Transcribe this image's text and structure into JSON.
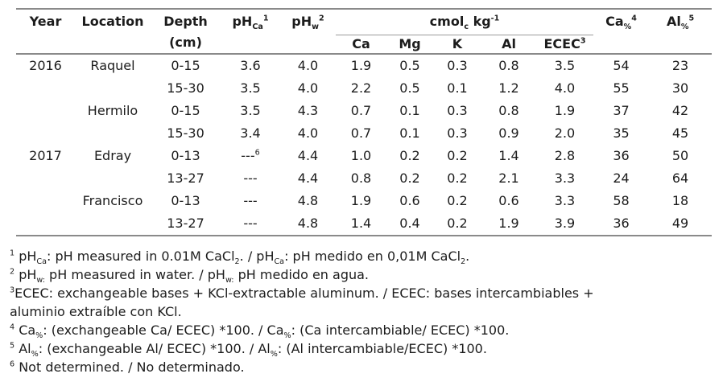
{
  "colors": {
    "rule": "#8a8a8a",
    "thin_rule": "#9a9a9a",
    "text": "#1c1c1c",
    "background": "#ffffff"
  },
  "table": {
    "header": {
      "year": "Year",
      "location": "Location",
      "depth_line1": "Depth",
      "depth_line2": "(cm)",
      "ph_ca": [
        {
          "t": "pH"
        },
        {
          "sub": "Ca"
        },
        {
          "sup": "1"
        }
      ],
      "ph_w": [
        {
          "t": "pH"
        },
        {
          "sub": "w"
        },
        {
          "sup": "2"
        }
      ],
      "cmol_group": [
        {
          "t": "cmol"
        },
        {
          "sub": "c"
        },
        {
          "t": " kg"
        },
        {
          "sup": "-1"
        }
      ],
      "ca": "Ca",
      "mg": "Mg",
      "k": "K",
      "al": "Al",
      "ecec": [
        {
          "t": "ECEC"
        },
        {
          "sup": "3"
        }
      ],
      "ca_pct": [
        {
          "t": "Ca"
        },
        {
          "sub": "%"
        },
        {
          "sup": "4"
        }
      ],
      "al_pct": [
        {
          "t": "Al"
        },
        {
          "sub": "%"
        },
        {
          "sup": "5"
        }
      ]
    },
    "rows": [
      {
        "cells": [
          "2016",
          "Raquel",
          "0-15",
          "3.6",
          "4.0",
          "1.9",
          "0.5",
          "0.3",
          "0.8",
          "3.5",
          "54",
          "23"
        ]
      },
      {
        "cells": [
          "",
          "",
          "15-30",
          "3.5",
          "4.0",
          "2.2",
          "0.5",
          "0.1",
          "1.2",
          "4.0",
          "55",
          "30"
        ]
      },
      {
        "cells": [
          "",
          "Hermilo",
          "0-15",
          "3.5",
          "4.3",
          "0.7",
          "0.1",
          "0.3",
          "0.8",
          "1.9",
          "37",
          "42"
        ]
      },
      {
        "cells": [
          "",
          "",
          "15-30",
          "3.4",
          "4.0",
          "0.7",
          "0.1",
          "0.3",
          "0.9",
          "2.0",
          "35",
          "45"
        ]
      },
      {
        "cells": [
          "2017",
          "Edray",
          "0-13",
          [
            {
              "t": "---"
            },
            {
              "sup": "6"
            }
          ],
          "4.4",
          "1.0",
          "0.2",
          "0.2",
          "1.4",
          "2.8",
          "36",
          "50"
        ]
      },
      {
        "cells": [
          "",
          "",
          "13-27",
          "---",
          "4.4",
          "0.8",
          "0.2",
          "0.2",
          "2.1",
          "3.3",
          "24",
          "64"
        ]
      },
      {
        "cells": [
          "",
          "Francisco",
          "0-13",
          "---",
          "4.8",
          "1.9",
          "0.6",
          "0.2",
          "0.6",
          "3.3",
          "58",
          "18"
        ]
      },
      {
        "cells": [
          "",
          "",
          "13-27",
          "---",
          "4.8",
          "1.4",
          "0.4",
          "0.2",
          "1.9",
          "3.9",
          "36",
          "49"
        ]
      }
    ]
  },
  "footnotes": [
    [
      {
        "sup": "1"
      },
      {
        "t": " pH"
      },
      {
        "sub": "Ca"
      },
      {
        "t": ": pH measured in 0.01M CaCl"
      },
      {
        "sub": "2"
      },
      {
        "t": ". / pH"
      },
      {
        "sub": "Ca"
      },
      {
        "t": ": pH medido en 0,01M CaCl"
      },
      {
        "sub": "2"
      },
      {
        "t": "."
      }
    ],
    [
      {
        "sup": "2"
      },
      {
        "t": " pH"
      },
      {
        "sub": "w:"
      },
      {
        "t": " pH measured in water. / pH"
      },
      {
        "sub": "w:"
      },
      {
        "t": " pH medido en agua."
      }
    ],
    [
      {
        "sup": "3"
      },
      {
        "t": "ECEC: exchangeable bases + KCl-extractable aluminum. / ECEC: bases intercambiables +"
      },
      {
        "br": true
      },
      {
        "t": "aluminio extraíble con KCl."
      }
    ],
    [
      {
        "sup": "4"
      },
      {
        "t": " Ca"
      },
      {
        "sub": "%"
      },
      {
        "t": ": (exchangeable Ca/ ECEC) *100. / Ca"
      },
      {
        "sub": "%"
      },
      {
        "t": ": (Ca intercambiable/ ECEC) *100."
      }
    ],
    [
      {
        "sup": "5"
      },
      {
        "t": " Al"
      },
      {
        "sub": "%"
      },
      {
        "t": ": (exchangeable Al/ ECEC) *100. / Al"
      },
      {
        "sub": "%"
      },
      {
        "t": ": (Al intercambiable/ECEC) *100."
      }
    ],
    [
      {
        "sup": "6"
      },
      {
        "t": " Not determined. / No determinado."
      }
    ]
  ]
}
